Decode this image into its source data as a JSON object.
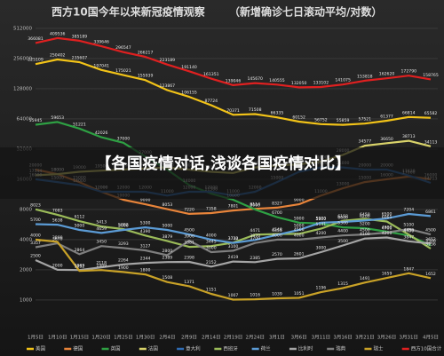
{
  "chart_data": {
    "type": "line",
    "title": "西方10国今年以来新冠疫情观察",
    "subtitle": "（新增确诊七日滚动平均/对数）",
    "banner": "【各国疫情对话,浅谈各国疫情对比】",
    "log_scale": true,
    "grid": true,
    "legend": "bottom",
    "categories": [
      "1月5日",
      "1月10日",
      "1月15日",
      "1月20日",
      "1月25日",
      "1月30日",
      "2月4日",
      "2月9日",
      "2月14日",
      "2月19日",
      "2月24日",
      "3月1日",
      "3月6日",
      "3月11日",
      "3月16日",
      "3月21日",
      "3月26日",
      "3月31日",
      "4月5日"
    ],
    "ylim": [
      750,
      640000
    ],
    "yticks": [
      1000,
      2000,
      4000,
      8000,
      16000,
      32000,
      64000,
      128000,
      256000,
      512000
    ],
    "series": [
      {
        "name": "美国",
        "color": "#f2c318",
        "values": [
          225109,
          250402,
          235607,
          197041,
          175021,
          155939,
          123867,
          106155,
          87724,
          70371,
          71508,
          66335,
          60152,
          56752,
          55859,
          57521,
          61377,
          66814,
          65582
        ]
      },
      {
        "name": "德国",
        "color": "#e8843a",
        "values": [
          20000,
          18000,
          15000,
          12000,
          10000,
          9000,
          8053,
          7220,
          7358,
          7801,
          8114,
          8327,
          9000,
          11000,
          13000,
          15000,
          16000,
          17000,
          16000
        ]
      },
      {
        "name": "英国",
        "color": "#2ea043",
        "values": [
          55945,
          59653,
          51221,
          42026,
          37000,
          27000,
          20000,
          14000,
          11500,
          10000,
          8000,
          6700,
          5900,
          5800,
          5300,
          5200,
          4800,
          4400,
          3500
        ]
      },
      {
        "name": "法国",
        "color": "#d9d36a",
        "values": [
          17544,
          18000,
          19000,
          19500,
          20000,
          20500,
          21000,
          20000,
          19000,
          18500,
          21000,
          22000,
          22500,
          24000,
          28000,
          34577,
          36650,
          38713,
          34113
        ]
      },
      {
        "name": "意大利",
        "color": "#2f6db5",
        "values": [
          16000,
          15000,
          14000,
          12000,
          12000,
          12000,
          11000,
          12000,
          12000,
          11000,
          12000,
          15000,
          19000,
          21000,
          21000,
          20000,
          20000,
          17430,
          14713
        ]
      },
      {
        "name": "西班牙",
        "color": "#9bbb59",
        "values": [
          8023,
          7083,
          6112,
          5413,
          5092,
          4390,
          3879,
          3381,
          3445,
          3732,
          4471,
          4548,
          4566,
          5141,
          6158,
          6450,
          6061,
          4489,
          3256
        ]
      },
      {
        "name": "荷兰",
        "color": "#5b9bd5",
        "values": [
          5700,
          5638,
          5000,
          4659,
          5000,
          5300,
          5000,
          4500,
          4000,
          3710,
          3970,
          4455,
          5000,
          5900,
          6000,
          6200,
          6500,
          7204,
          6861
        ]
      },
      {
        "name": "比利时",
        "color": "#a5a5a5",
        "values": [
          2500,
          2000,
          1989,
          2118,
          2264,
          2344,
          2389,
          2398,
          2152,
          2419,
          2385,
          2570,
          2601,
          3000,
          3500,
          4100,
          4200,
          3847,
          3652
        ]
      },
      {
        "name": "瑞典",
        "color": "#7f7f7f",
        "values": [
          3357,
          3670,
          2864,
          3450,
          3293,
          3127,
          2800,
          3900,
          3000,
          3100,
          3700,
          4000,
          4000,
          4200,
          4400,
          4500,
          4700,
          5100,
          4500
        ]
      },
      {
        "name": "瑞士",
        "color": "#c9a227",
        "values": [
          4000,
          3800,
          1952,
          1989,
          1900,
          1800,
          1508,
          1371,
          1151,
          1007,
          1016,
          1039,
          1051,
          1196,
          1315,
          1491,
          1659,
          1847,
          1652
        ]
      },
      {
        "name": "西方10国合计",
        "color": "#e02020",
        "values": [
          366081,
          409536,
          385189,
          339646,
          296547,
          266217,
          223189,
          191140,
          161351,
          139046,
          145670,
          140555,
          132050,
          133102,
          141075,
          153818,
          162620,
          172790,
          158765
        ]
      }
    ]
  }
}
